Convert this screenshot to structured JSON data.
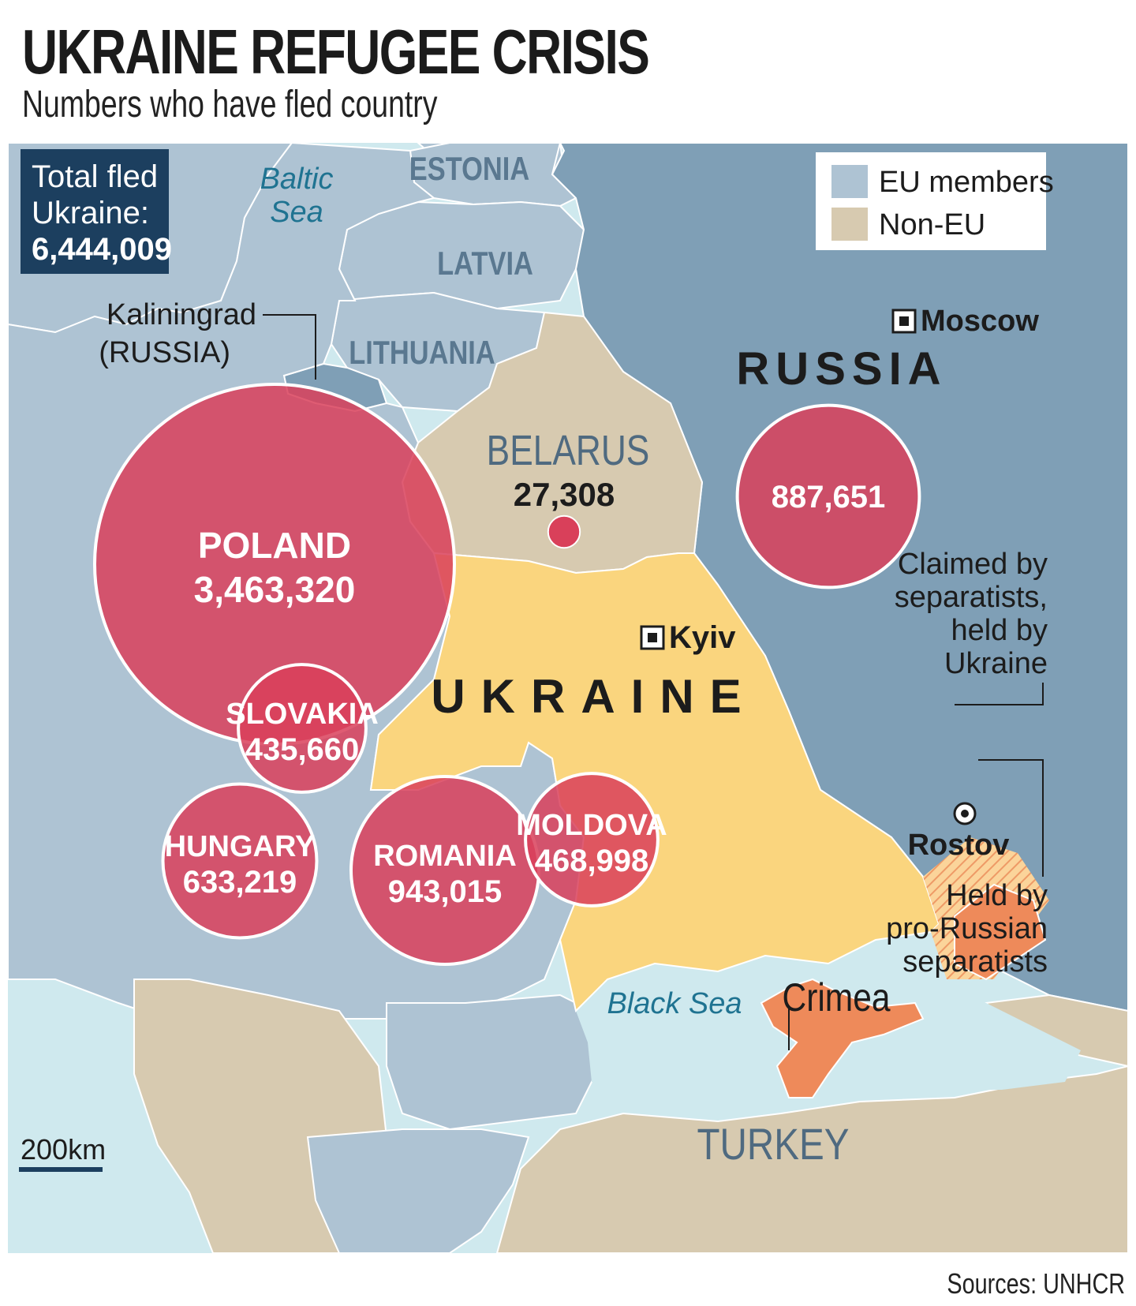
{
  "title": "UKRAINE REFUGEE CRISIS",
  "subtitle": "Numbers who have fled country",
  "source": "Sources: UNHCR",
  "total_box": {
    "line1": "Total fled",
    "line2": "Ukraine:",
    "value": "6,444,009"
  },
  "legend": [
    {
      "label": "EU members",
      "color": "#aec3d3"
    },
    {
      "label": "Non-EU",
      "color": "#d7cab0"
    }
  ],
  "colors": {
    "sea": "#cfe9ee",
    "russia": "#7f9fb6",
    "eu": "#aec3d3",
    "non_eu": "#d7cab0",
    "ukraine": "#fad57e",
    "separatist": "#ee8a5a",
    "bubble": "#d9405a",
    "box": "#1c3f5f"
  },
  "countries": {
    "estonia": "ESTONIA",
    "latvia": "LATVIA",
    "lithuania": "LITHUANIA",
    "russia": "RUSSIA",
    "ukraine": "UKRAINE",
    "turkey": "TURKEY",
    "kaliningrad": "Kaliningrad",
    "kaliningrad_sub": "(RUSSIA)"
  },
  "seas": {
    "baltic_1": "Baltic",
    "baltic_2": "Sea",
    "black": "Black Sea"
  },
  "cities": {
    "moscow": "Moscow",
    "kyiv": "Kyiv",
    "rostov": "Rostov"
  },
  "annotations": {
    "claimed": [
      "Claimed by",
      "separatists,",
      "held by",
      "Ukraine"
    ],
    "held": [
      "Held by",
      "pro-Russian",
      "separatists"
    ],
    "crimea": "Crimea"
  },
  "scale_bar": "200km",
  "refugees": [
    {
      "key": "poland",
      "country": "POLAND",
      "value": 3463320,
      "label": "3,463,320"
    },
    {
      "key": "romania",
      "country": "ROMANIA",
      "value": 943015,
      "label": "943,015"
    },
    {
      "key": "russia",
      "country": "",
      "value": 887651,
      "label": "887,651"
    },
    {
      "key": "hungary",
      "country": "HUNGARY",
      "value": 633219,
      "label": "633,219"
    },
    {
      "key": "moldova",
      "country": "MOLDOVA",
      "value": 468998,
      "label": "468,998"
    },
    {
      "key": "slovakia",
      "country": "SLOVAKIA",
      "value": 435660,
      "label": "435,660"
    },
    {
      "key": "belarus",
      "country": "BELARUS",
      "value": 27308,
      "label": "27,308"
    }
  ]
}
